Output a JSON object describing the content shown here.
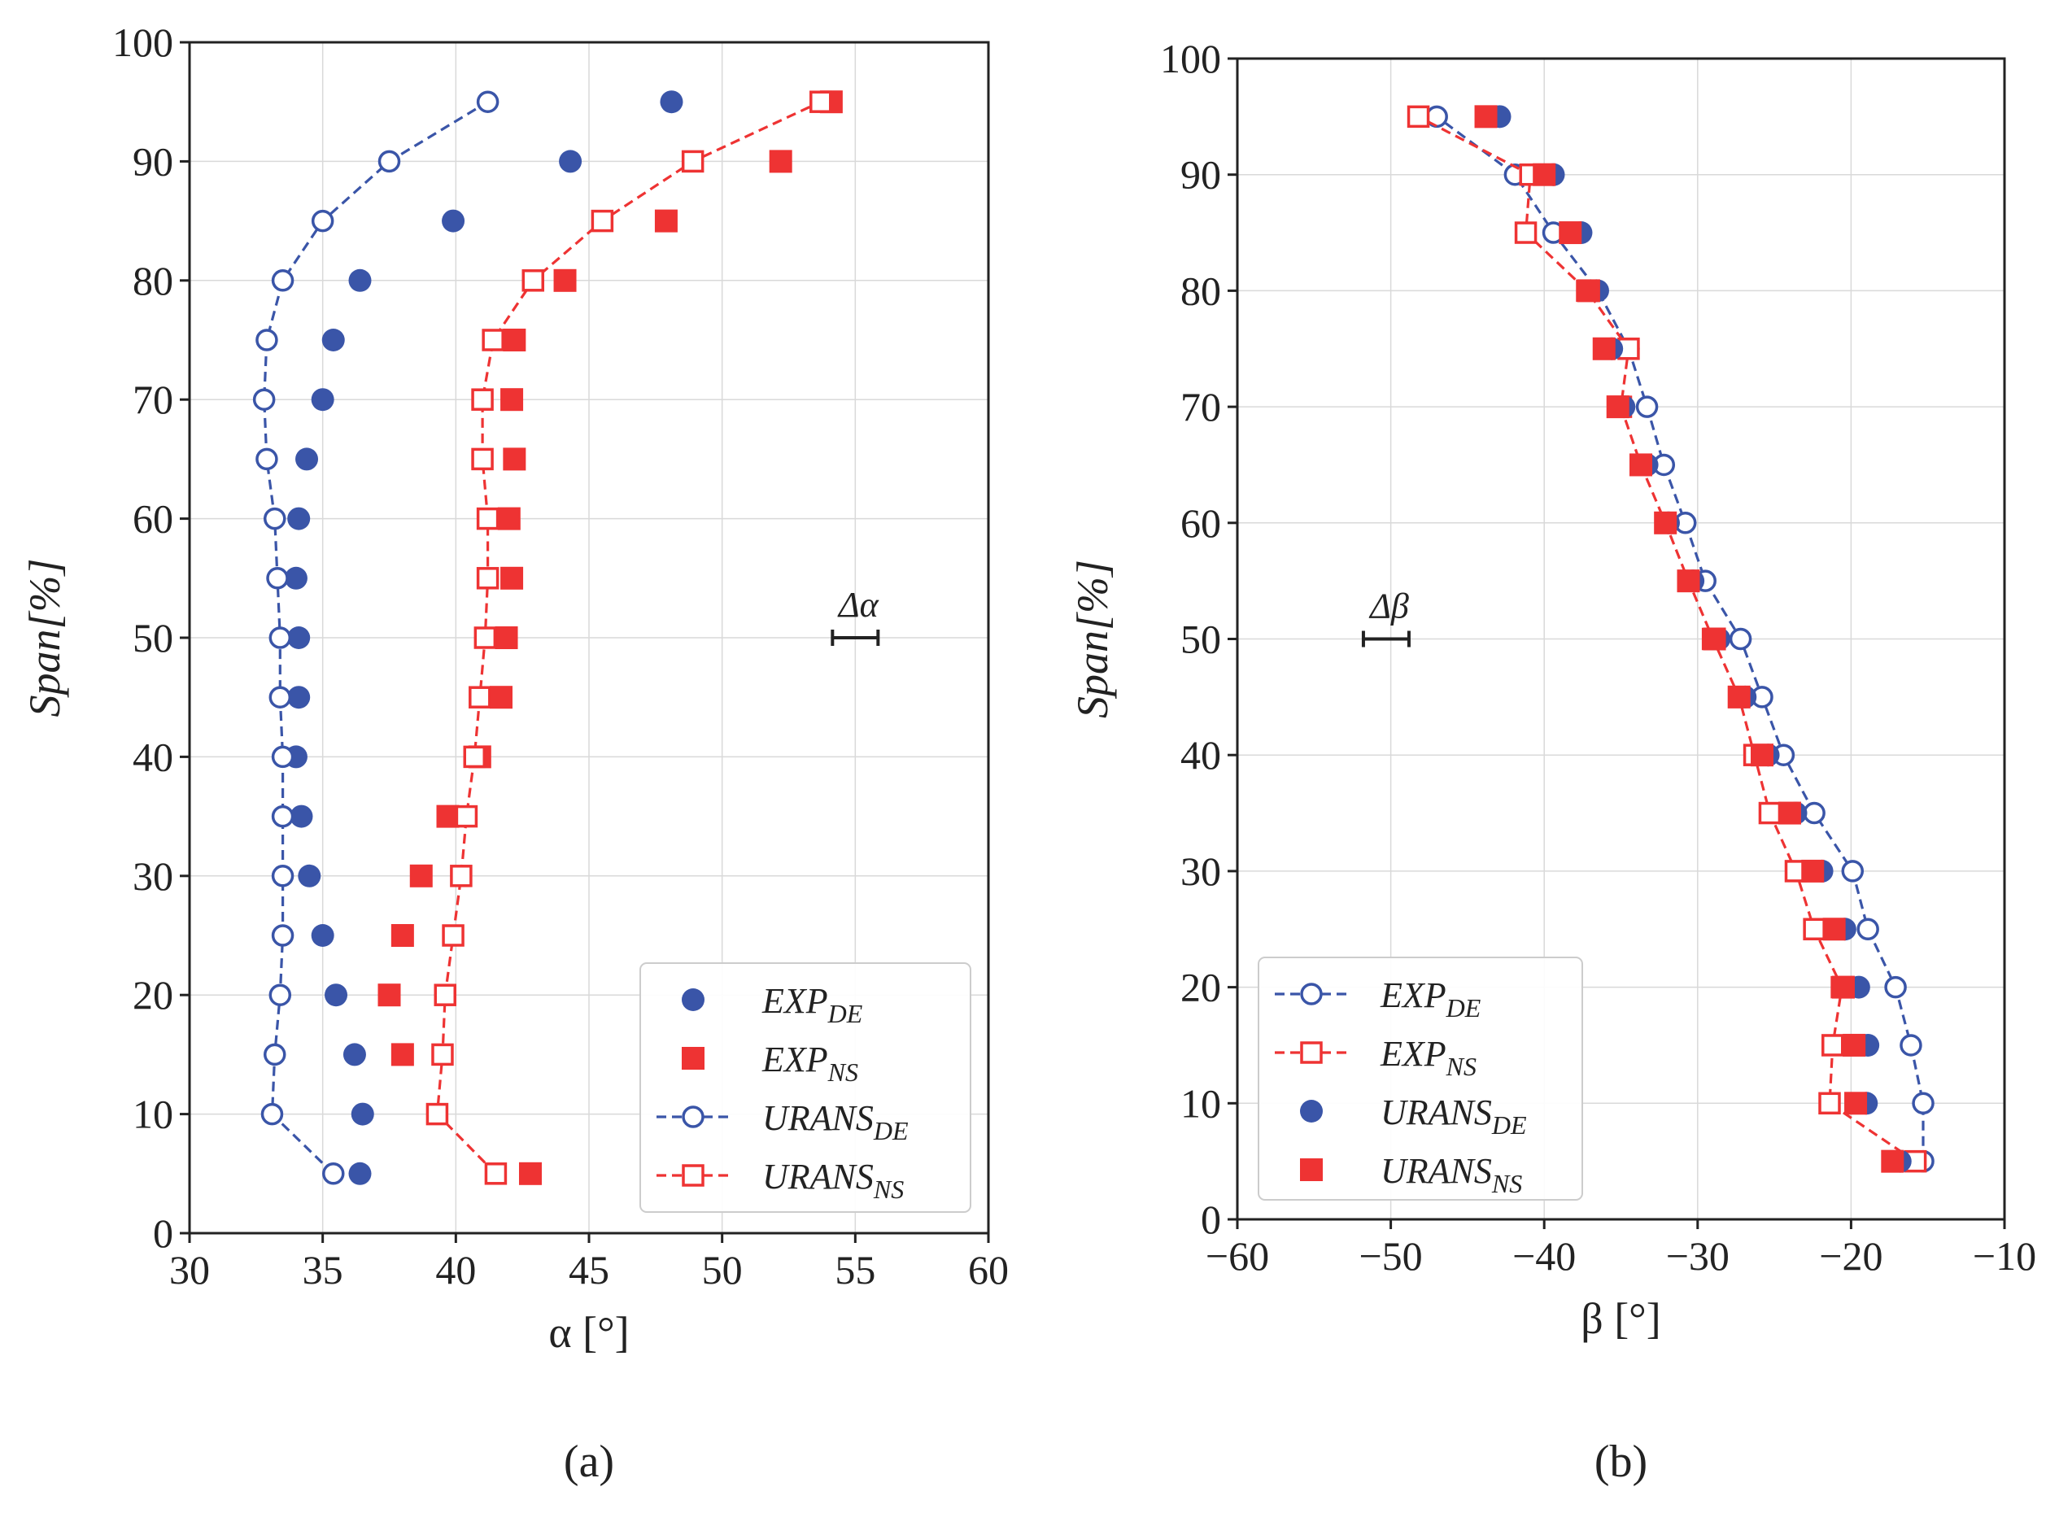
{
  "colors": {
    "de": "#3a55a8",
    "ns": "#ee3333",
    "axis": "#222222",
    "grid": "#d9d9d9"
  },
  "chart_data": [
    {
      "type": "scatter",
      "panel_label": "(a)",
      "xlabel": "α [°]",
      "ylabel": "Span[%]",
      "xlim": [
        30,
        60
      ],
      "ylim": [
        0,
        100
      ],
      "xticks": [
        "30",
        "35",
        "40",
        "45",
        "50",
        "55",
        "60"
      ],
      "yticks": [
        "0",
        "10",
        "20",
        "30",
        "40",
        "50",
        "60",
        "70",
        "80",
        "90",
        "100"
      ],
      "grid": true,
      "legend_position": "lower-right",
      "uncertainty_label": "Δα",
      "uncertainty_bar": {
        "x": 55,
        "y": 50
      },
      "series": [
        {
          "name": "EXP_DE",
          "label_main": "EXP",
          "label_sub": "DE",
          "color_key": "de",
          "marker": "circle-filled",
          "line": false,
          "points": [
            [
              36.4,
              5
            ],
            [
              36.5,
              10
            ],
            [
              36.2,
              15
            ],
            [
              35.5,
              20
            ],
            [
              35.0,
              25
            ],
            [
              34.5,
              30
            ],
            [
              34.2,
              35
            ],
            [
              34.0,
              40
            ],
            [
              34.1,
              45
            ],
            [
              34.1,
              50
            ],
            [
              34.0,
              55
            ],
            [
              34.1,
              60
            ],
            [
              34.4,
              65
            ],
            [
              35.0,
              70
            ],
            [
              35.4,
              75
            ],
            [
              36.4,
              80
            ],
            [
              39.9,
              85
            ],
            [
              44.3,
              90
            ],
            [
              48.1,
              95
            ]
          ]
        },
        {
          "name": "EXP_NS",
          "label_main": "EXP",
          "label_sub": "NS",
          "color_key": "ns",
          "marker": "square-filled",
          "line": false,
          "points": [
            [
              42.8,
              5
            ],
            [
              38.0,
              15
            ],
            [
              37.5,
              20
            ],
            [
              38.0,
              25
            ],
            [
              38.7,
              30
            ],
            [
              39.7,
              35
            ],
            [
              40.9,
              40
            ],
            [
              41.7,
              45
            ],
            [
              41.9,
              50
            ],
            [
              42.1,
              55
            ],
            [
              42.0,
              60
            ],
            [
              42.2,
              65
            ],
            [
              42.1,
              70
            ],
            [
              42.2,
              75
            ],
            [
              44.1,
              80
            ],
            [
              47.9,
              85
            ],
            [
              52.2,
              90
            ],
            [
              54.1,
              95
            ]
          ]
        },
        {
          "name": "URANS_DE",
          "label_main": "URANS",
          "label_sub": "DE",
          "color_key": "de",
          "marker": "circle-open",
          "line": true,
          "points": [
            [
              35.4,
              5
            ],
            [
              33.1,
              10
            ],
            [
              33.2,
              15
            ],
            [
              33.4,
              20
            ],
            [
              33.5,
              25
            ],
            [
              33.5,
              30
            ],
            [
              33.5,
              35
            ],
            [
              33.5,
              40
            ],
            [
              33.4,
              45
            ],
            [
              33.4,
              50
            ],
            [
              33.3,
              55
            ],
            [
              33.2,
              60
            ],
            [
              32.9,
              65
            ],
            [
              32.8,
              70
            ],
            [
              32.9,
              75
            ],
            [
              33.5,
              80
            ],
            [
              35.0,
              85
            ],
            [
              37.5,
              90
            ],
            [
              41.2,
              95
            ]
          ]
        },
        {
          "name": "URANS_NS",
          "label_main": "URANS",
          "label_sub": "NS",
          "color_key": "ns",
          "marker": "square-open",
          "line": true,
          "points": [
            [
              41.5,
              5
            ],
            [
              39.3,
              10
            ],
            [
              39.5,
              15
            ],
            [
              39.6,
              20
            ],
            [
              39.9,
              25
            ],
            [
              40.2,
              30
            ],
            [
              40.4,
              35
            ],
            [
              40.7,
              40
            ],
            [
              40.9,
              45
            ],
            [
              41.1,
              50
            ],
            [
              41.2,
              55
            ],
            [
              41.2,
              60
            ],
            [
              41.0,
              65
            ],
            [
              41.0,
              70
            ],
            [
              41.4,
              75
            ],
            [
              42.9,
              80
            ],
            [
              45.5,
              85
            ],
            [
              48.9,
              90
            ],
            [
              53.7,
              95
            ]
          ]
        }
      ]
    },
    {
      "type": "scatter",
      "panel_label": "(b)",
      "xlabel": "β [°]",
      "ylabel": "Span[%]",
      "xlim": [
        -60,
        -10
      ],
      "ylim": [
        0,
        100
      ],
      "xticks": [
        "−60",
        "−50",
        "−40",
        "−30",
        "−20",
        "−10"
      ],
      "yticks": [
        "0",
        "10",
        "20",
        "30",
        "40",
        "50",
        "60",
        "70",
        "80",
        "90",
        "100"
      ],
      "grid": true,
      "legend_position": "lower-left",
      "uncertainty_label": "Δβ",
      "uncertainty_bar": {
        "x": -50.3,
        "y": 50
      },
      "series": [
        {
          "name": "EXP_DE",
          "label_main": "EXP",
          "label_sub": "DE",
          "color_key": "de",
          "marker": "circle-open",
          "line": true,
          "points": [
            [
              -15.3,
              5
            ],
            [
              -15.3,
              10
            ],
            [
              -16.1,
              15
            ],
            [
              -17.1,
              20
            ],
            [
              -18.9,
              25
            ],
            [
              -19.9,
              30
            ],
            [
              -22.4,
              35
            ],
            [
              -24.4,
              40
            ],
            [
              -25.8,
              45
            ],
            [
              -27.2,
              50
            ],
            [
              -29.5,
              55
            ],
            [
              -30.8,
              60
            ],
            [
              -32.2,
              65
            ],
            [
              -33.3,
              70
            ],
            [
              -34.5,
              75
            ],
            [
              -36.5,
              80
            ],
            [
              -39.4,
              85
            ],
            [
              -41.9,
              90
            ],
            [
              -47.0,
              95
            ]
          ]
        },
        {
          "name": "EXP_NS",
          "label_main": "EXP",
          "label_sub": "NS",
          "color_key": "ns",
          "marker": "square-open",
          "line": true,
          "points": [
            [
              -15.8,
              5
            ],
            [
              -21.4,
              10
            ],
            [
              -21.2,
              15
            ],
            [
              -20.6,
              20
            ],
            [
              -22.4,
              25
            ],
            [
              -23.6,
              30
            ],
            [
              -25.3,
              35
            ],
            [
              -26.3,
              40
            ],
            [
              -27.3,
              45
            ],
            [
              -29.0,
              50
            ],
            [
              -30.6,
              55
            ],
            [
              -32.1,
              60
            ],
            [
              -33.7,
              65
            ],
            [
              -35.0,
              70
            ],
            [
              -34.5,
              75
            ],
            [
              -37.2,
              80
            ],
            [
              -41.2,
              85
            ],
            [
              -40.9,
              90
            ],
            [
              -48.2,
              95
            ]
          ]
        },
        {
          "name": "URANS_DE",
          "label_main": "URANS",
          "label_sub": "DE",
          "color_key": "de",
          "marker": "circle-filled",
          "line": false,
          "points": [
            [
              -16.8,
              5
            ],
            [
              -19.0,
              10
            ],
            [
              -18.9,
              15
            ],
            [
              -19.5,
              20
            ],
            [
              -20.4,
              25
            ],
            [
              -21.9,
              30
            ],
            [
              -23.6,
              35
            ],
            [
              -25.4,
              40
            ],
            [
              -26.9,
              45
            ],
            [
              -28.6,
              50
            ],
            [
              -30.3,
              55
            ],
            [
              -31.9,
              60
            ],
            [
              -33.3,
              65
            ],
            [
              -34.8,
              70
            ],
            [
              -35.6,
              75
            ],
            [
              -36.6,
              80
            ],
            [
              -37.6,
              85
            ],
            [
              -39.4,
              90
            ],
            [
              -42.9,
              95
            ]
          ]
        },
        {
          "name": "URANS_NS",
          "label_main": "URANS",
          "label_sub": "NS",
          "color_key": "ns",
          "marker": "square-filled",
          "line": false,
          "points": [
            [
              -17.3,
              5
            ],
            [
              -19.7,
              10
            ],
            [
              -19.8,
              15
            ],
            [
              -20.5,
              20
            ],
            [
              -21.1,
              25
            ],
            [
              -22.5,
              30
            ],
            [
              -24.0,
              35
            ],
            [
              -25.8,
              40
            ],
            [
              -27.3,
              45
            ],
            [
              -28.9,
              50
            ],
            [
              -30.6,
              55
            ],
            [
              -32.1,
              60
            ],
            [
              -33.7,
              65
            ],
            [
              -35.2,
              70
            ],
            [
              -36.1,
              75
            ],
            [
              -37.1,
              80
            ],
            [
              -38.3,
              85
            ],
            [
              -40.0,
              90
            ],
            [
              -43.8,
              95
            ]
          ]
        }
      ]
    }
  ]
}
